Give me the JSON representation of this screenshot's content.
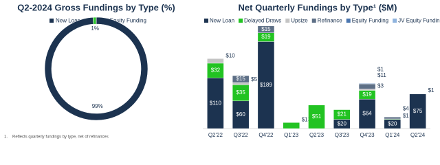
{
  "chart_data": [
    {
      "type": "pie",
      "title": "Q2-2024 Gross Fundings by Type (%)",
      "categories": [
        "New Loan",
        "JV Equity Funding"
      ],
      "values": [
        99,
        1
      ],
      "value_labels": [
        "99%",
        "1%"
      ],
      "colors": [
        "#1c3350",
        "#2ec52e"
      ],
      "donut": true
    },
    {
      "type": "stacked-bar",
      "title": "Net Quarterly Fundings by Type¹ ($M)",
      "categories": [
        "Q2'22",
        "Q3'22",
        "Q4'22",
        "Q1'23",
        "Q2'23",
        "Q3'23",
        "Q4'23",
        "Q1'24",
        "Q2'24"
      ],
      "ylim": [
        0,
        230
      ],
      "series": [
        {
          "name": "New Loan",
          "color": "#1c3350",
          "values": [
            110,
            60,
            189,
            null,
            null,
            20,
            64,
            20,
            75
          ],
          "value_labels": [
            "$110",
            "$60",
            "$189",
            null,
            null,
            "$20",
            "$64",
            "$20",
            "$75"
          ]
        },
        {
          "name": "Delayed Draws",
          "color": "#22c322",
          "values": [
            32,
            35,
            19,
            13,
            51,
            21,
            19,
            1,
            null
          ],
          "value_labels": [
            "$32",
            "$35",
            "$19",
            "$13",
            "$51",
            "$21",
            "$19",
            "$1",
            null
          ]
        },
        {
          "name": "Upsize",
          "color": "#c4c4c4",
          "values": [
            10,
            5,
            null,
            null,
            null,
            null,
            3,
            null,
            null
          ],
          "value_labels": [
            "$10",
            "$5",
            null,
            null,
            null,
            null,
            "$3",
            null,
            null
          ]
        },
        {
          "name": "Refinance",
          "color": "#5d6f86",
          "values": [
            null,
            15,
            15,
            null,
            null,
            null,
            11,
            4,
            null
          ],
          "value_labels": [
            null,
            "$15",
            "$15",
            null,
            null,
            null,
            "$11",
            "$4",
            null
          ]
        },
        {
          "name": "Equity Funding",
          "color": "#4a76b0",
          "values": [
            null,
            null,
            null,
            null,
            null,
            null,
            1,
            null,
            null
          ],
          "value_labels": [
            null,
            null,
            null,
            null,
            null,
            null,
            "$1",
            null,
            null
          ]
        },
        {
          "name": "JV Equity Funding",
          "color": "#8fb4de",
          "values": [
            null,
            null,
            null,
            null,
            null,
            null,
            null,
            null,
            1
          ],
          "value_labels": [
            null,
            null,
            null,
            null,
            null,
            null,
            null,
            null,
            "$1"
          ]
        }
      ]
    }
  ],
  "footnote": {
    "marker": "1.",
    "text": "Reflects quarterly fundings by type, net of refinances"
  }
}
